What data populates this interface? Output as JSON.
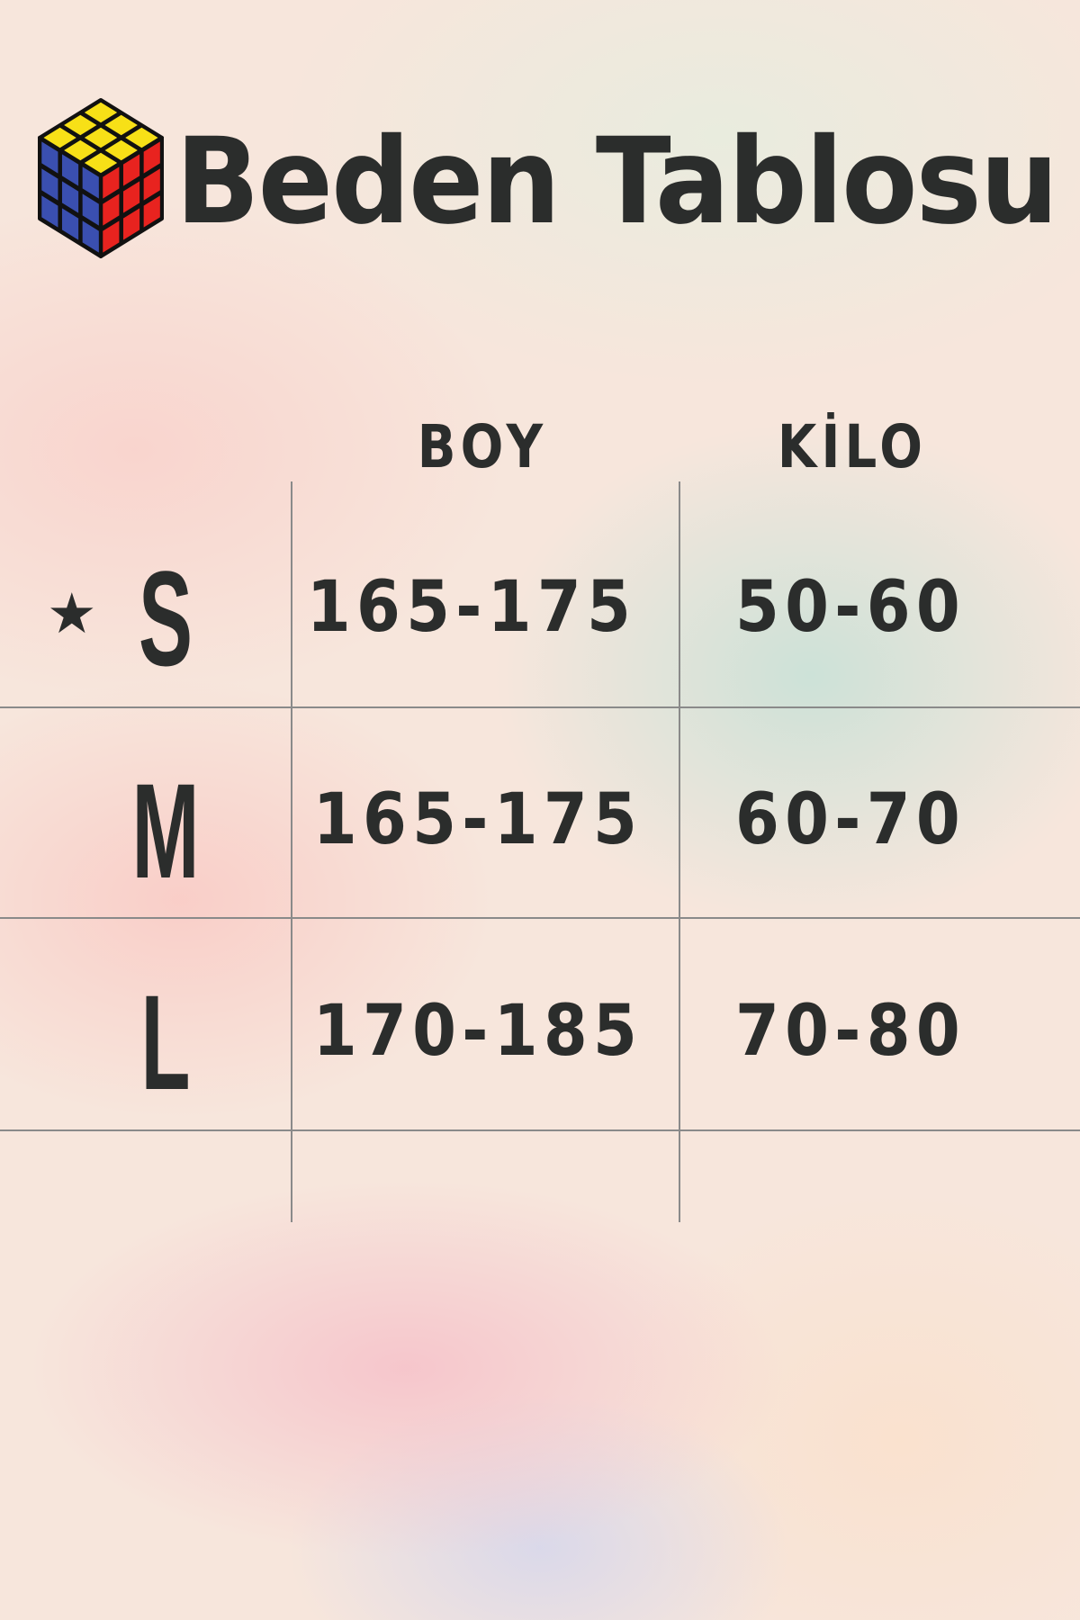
{
  "title": "Beden Tablosu",
  "logo": "rubiks-cube",
  "columns": [
    "BOY",
    "KİLO"
  ],
  "rows": [
    {
      "size": "S",
      "boy": "165-175",
      "kilo": "50-60",
      "marked": true
    },
    {
      "size": "M",
      "boy": "165-175",
      "kilo": "60-70"
    },
    {
      "size": "L",
      "boy": "170-185",
      "kilo": "70-80"
    }
  ],
  "colors": {
    "text": "#2b2d2c",
    "yellow": "#f7e017",
    "blue": "#3a4fb0",
    "red": "#e8231f"
  },
  "marker": "★"
}
